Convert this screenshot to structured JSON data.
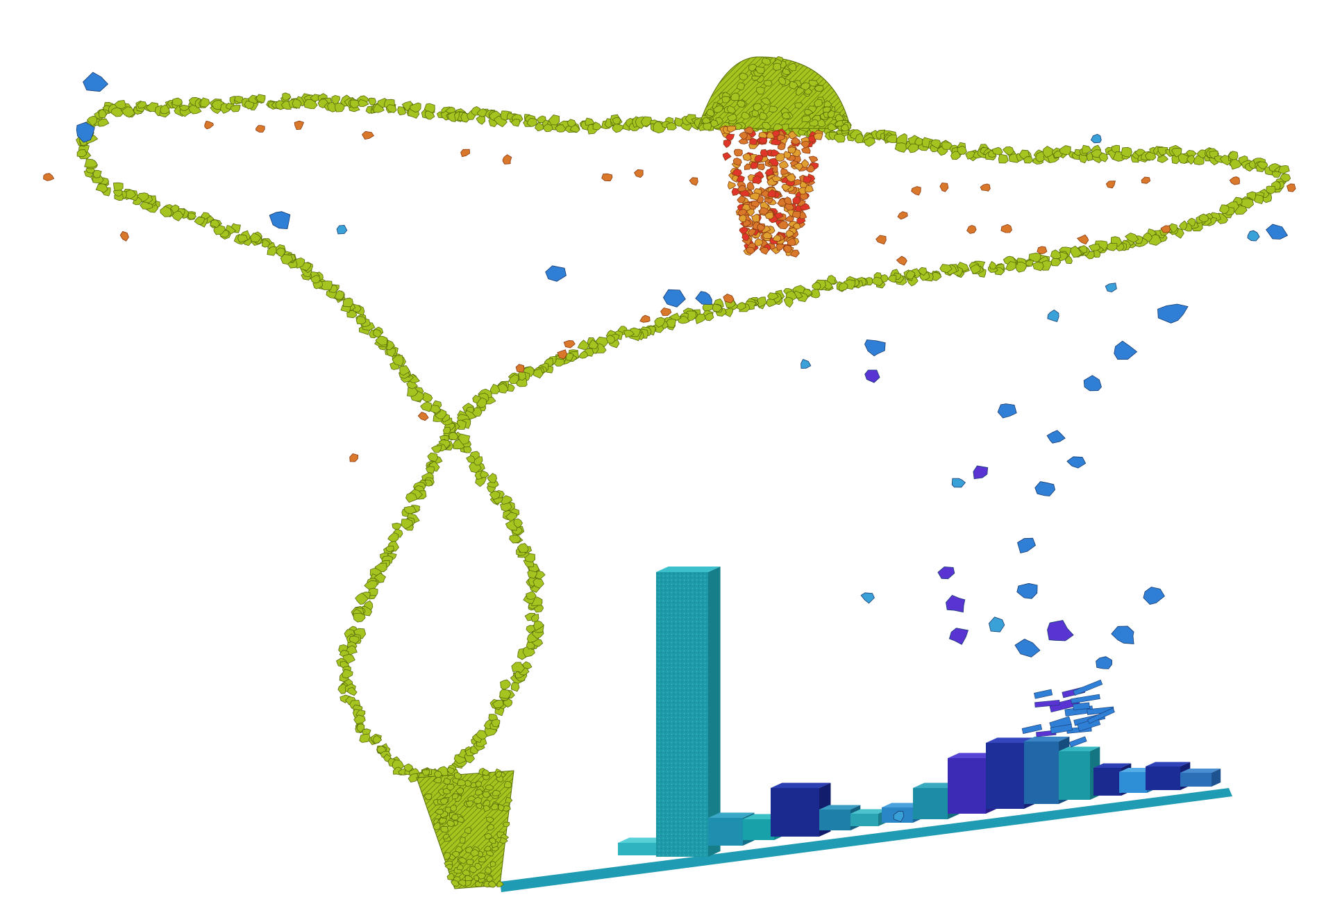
{
  "scene": {
    "colors": {
      "background": "#ffffff",
      "green": "#a6c41f",
      "green_dark": "#7f9a10",
      "green_outline": "#556b08",
      "orange": "#d9772b",
      "orange_light": "#e0a030",
      "red": "#e0362a",
      "blue": "#2f7fd6",
      "blue_light": "#3aa0d8",
      "violet": "#5a34d2",
      "navy": "#1b2a8f",
      "teal": "#1e9aa8",
      "teal_light": "#2eb3c0"
    },
    "icons": {
      "green_particle_trail": "figure-eight-trail-icon",
      "green_funnel": "funnel-icon",
      "green_dome": "dome-icon",
      "orange_cluster": "burst-cluster-icon",
      "blue_fragments": "fragment-icon",
      "bars": "iso-bar-icon"
    }
  }
}
